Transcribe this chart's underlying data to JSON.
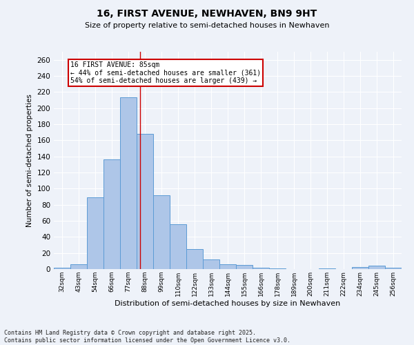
{
  "title": "16, FIRST AVENUE, NEWHAVEN, BN9 9HT",
  "subtitle": "Size of property relative to semi-detached houses in Newhaven",
  "xlabel": "Distribution of semi-detached houses by size in Newhaven",
  "ylabel": "Number of semi-detached properties",
  "categories": [
    "32sqm",
    "43sqm",
    "54sqm",
    "66sqm",
    "77sqm",
    "88sqm",
    "99sqm",
    "110sqm",
    "122sqm",
    "133sqm",
    "144sqm",
    "155sqm",
    "166sqm",
    "178sqm",
    "189sqm",
    "200sqm",
    "211sqm",
    "222sqm",
    "234sqm",
    "245sqm",
    "256sqm"
  ],
  "values": [
    2,
    6,
    89,
    136,
    213,
    168,
    92,
    56,
    25,
    12,
    6,
    5,
    2,
    1,
    0,
    0,
    1,
    0,
    3,
    4,
    2
  ],
  "bar_color": "#aec6e8",
  "bar_edge_color": "#5b9bd5",
  "property_line_x": 4.7,
  "annotation_text": "16 FIRST AVENUE: 85sqm\n← 44% of semi-detached houses are smaller (361)\n54% of semi-detached houses are larger (439) →",
  "annotation_box_color": "#ffffff",
  "annotation_box_edge_color": "#cc0000",
  "property_line_color": "#cc0000",
  "ylim": [
    0,
    270
  ],
  "yticks": [
    0,
    20,
    40,
    60,
    80,
    100,
    120,
    140,
    160,
    180,
    200,
    220,
    240,
    260
  ],
  "footer_line1": "Contains HM Land Registry data © Crown copyright and database right 2025.",
  "footer_line2": "Contains public sector information licensed under the Open Government Licence v3.0.",
  "bg_color": "#eef2f9",
  "grid_color": "#ffffff"
}
